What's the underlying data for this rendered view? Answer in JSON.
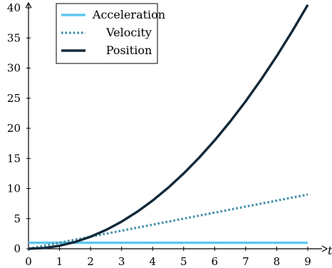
{
  "chart_data": {
    "type": "line",
    "title": "",
    "xlabel": "t",
    "ylabel": "",
    "xlim": [
      0,
      9
    ],
    "ylim": [
      0,
      40
    ],
    "x_ticks": [
      0,
      1,
      2,
      3,
      4,
      5,
      6,
      7,
      8,
      9
    ],
    "y_ticks": [
      0,
      5,
      10,
      15,
      20,
      25,
      30,
      35,
      40
    ],
    "grid": false,
    "legend_position": "top-left",
    "series": [
      {
        "name": "Acceleration",
        "style": "solid",
        "color": "#5bc8ef",
        "x": [
          0,
          9
        ],
        "y": [
          1,
          1
        ]
      },
      {
        "name": "Velocity",
        "style": "dotted",
        "color": "#3e8fa8",
        "x": [
          0,
          9
        ],
        "y": [
          0,
          9
        ]
      },
      {
        "name": "Position",
        "style": "solid",
        "color": "#12293a",
        "x": [
          0,
          0.5,
          1,
          1.5,
          2,
          2.5,
          3,
          3.5,
          4,
          4.5,
          5,
          5.5,
          6,
          6.5,
          7,
          7.5,
          8,
          8.5,
          9
        ],
        "y": [
          0,
          0.125,
          0.5,
          1.125,
          2,
          3.125,
          4.5,
          6.125,
          8,
          10.125,
          12.5,
          15.125,
          18,
          21.125,
          24.5,
          28.125,
          32,
          36.125,
          40.5
        ]
      }
    ]
  }
}
